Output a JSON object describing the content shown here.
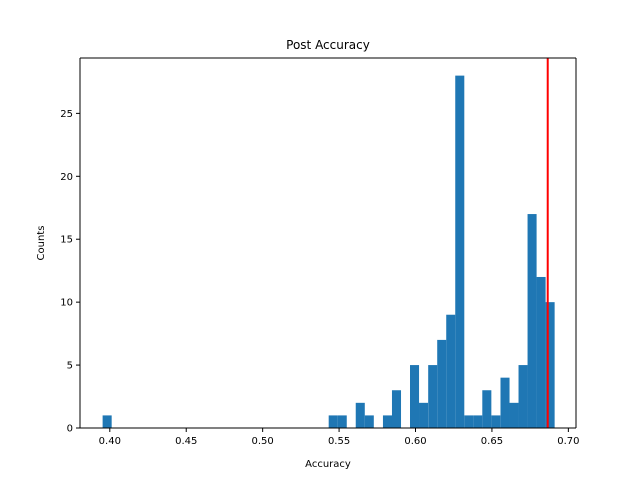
{
  "chart_data": {
    "type": "bar",
    "title": "Post Accuracy",
    "xlabel": "Accuracy",
    "ylabel": "Counts",
    "xlim": [
      0.3805,
      0.705
    ],
    "ylim": [
      0,
      29.4
    ],
    "x_ticks": [
      0.4,
      0.45,
      0.5,
      0.55,
      0.6,
      0.65,
      0.7
    ],
    "x_tick_labels": [
      "0.40",
      "0.45",
      "0.50",
      "0.55",
      "0.60",
      "0.65",
      "0.70"
    ],
    "y_ticks": [
      0,
      5,
      10,
      15,
      20,
      25
    ],
    "y_tick_labels": [
      "0",
      "5",
      "10",
      "15",
      "20",
      "25"
    ],
    "bin_width": 0.00592,
    "bins": [
      {
        "start": 0.3953,
        "count": 1
      },
      {
        "start": 0.5432,
        "count": 1
      },
      {
        "start": 0.5491,
        "count": 1
      },
      {
        "start": 0.5609,
        "count": 2
      },
      {
        "start": 0.5668,
        "count": 1
      },
      {
        "start": 0.5787,
        "count": 1
      },
      {
        "start": 0.5846,
        "count": 3
      },
      {
        "start": 0.5964,
        "count": 5
      },
      {
        "start": 0.6023,
        "count": 2
      },
      {
        "start": 0.6083,
        "count": 5
      },
      {
        "start": 0.6142,
        "count": 7
      },
      {
        "start": 0.6201,
        "count": 9
      },
      {
        "start": 0.626,
        "count": 28
      },
      {
        "start": 0.6319,
        "count": 1
      },
      {
        "start": 0.6378,
        "count": 1
      },
      {
        "start": 0.6437,
        "count": 3
      },
      {
        "start": 0.6496,
        "count": 1
      },
      {
        "start": 0.6556,
        "count": 4
      },
      {
        "start": 0.6615,
        "count": 2
      },
      {
        "start": 0.6674,
        "count": 5
      },
      {
        "start": 0.6733,
        "count": 17
      },
      {
        "start": 0.6792,
        "count": 12
      },
      {
        "start": 0.6851,
        "count": 10
      }
    ],
    "reference_line": {
      "x": 0.6865,
      "color": "#ff0000"
    },
    "bar_color": "#1f77b4",
    "grid": false,
    "legend": "none"
  }
}
